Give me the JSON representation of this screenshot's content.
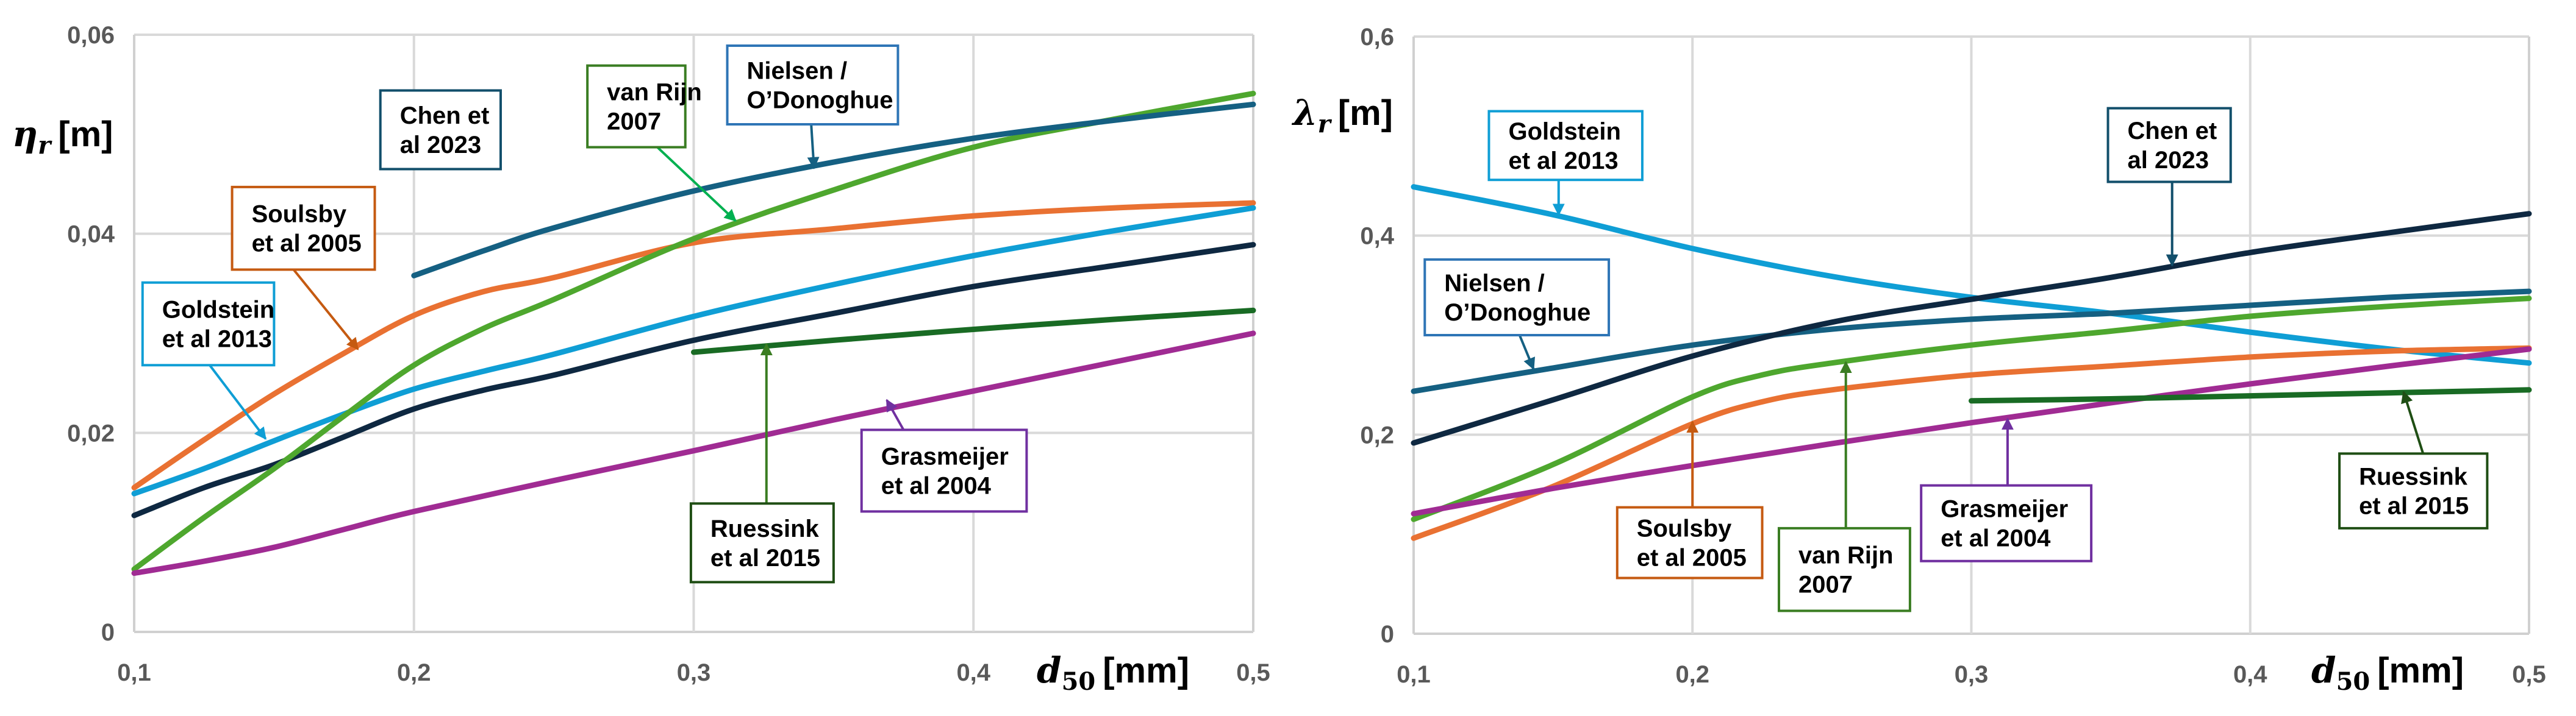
{
  "chart_data": [
    {
      "type": "line",
      "title": "",
      "xlabel": {
        "symbol": "d",
        "subscript": "50",
        "unit": "[mm]"
      },
      "ylabel": {
        "symbol": "η",
        "subscript": "r",
        "unit": "[m]"
      },
      "xlim": [
        0.1,
        0.5
      ],
      "ylim": [
        0,
        0.06
      ],
      "x_ticks": [
        0.1,
        0.2,
        0.3,
        0.4,
        0.5
      ],
      "x_tick_labels": [
        "0,1",
        "0,2",
        "0,3",
        "0,4",
        "0,5"
      ],
      "y_ticks": [
        0,
        0.02,
        0.04,
        0.06
      ],
      "y_tick_labels": [
        "0",
        "0,02",
        "0,04",
        "0,06"
      ],
      "grid": true,
      "legend": "none (callout labels)",
      "series": [
        {
          "name": "Soulsby et al 2005",
          "color": "#E97132",
          "x": [
            0.1,
            0.125,
            0.15,
            0.175,
            0.2,
            0.225,
            0.25,
            0.3,
            0.35,
            0.4,
            0.45,
            0.5
          ],
          "y": [
            0.0145,
            0.0193,
            0.0239,
            0.028,
            0.0318,
            0.0342,
            0.0356,
            0.0391,
            0.0405,
            0.0418,
            0.0426,
            0.0431
          ]
        },
        {
          "name": "Goldstein et al 2013",
          "color": "#0F9ED5",
          "x": [
            0.1,
            0.125,
            0.15,
            0.175,
            0.2,
            0.225,
            0.25,
            0.3,
            0.35,
            0.4,
            0.45,
            0.5
          ],
          "y": [
            0.0139,
            0.0164,
            0.0192,
            0.0219,
            0.0244,
            0.0262,
            0.0279,
            0.0317,
            0.0349,
            0.0378,
            0.0403,
            0.0426
          ]
        },
        {
          "name": "Chen et al 2023",
          "color": "#0E2841",
          "x": [
            0.1,
            0.125,
            0.15,
            0.175,
            0.2,
            0.225,
            0.25,
            0.3,
            0.35,
            0.4,
            0.45,
            0.5
          ],
          "y": [
            0.0117,
            0.0145,
            0.0168,
            0.0196,
            0.0224,
            0.0243,
            0.0258,
            0.0293,
            0.032,
            0.0347,
            0.0368,
            0.0389
          ]
        },
        {
          "name": "van Rijn 2007",
          "color": "#4EA72E",
          "x": [
            0.1,
            0.125,
            0.15,
            0.175,
            0.2,
            0.225,
            0.25,
            0.3,
            0.35,
            0.4,
            0.45,
            0.5
          ],
          "y": [
            0.0063,
            0.0115,
            0.0164,
            0.0217,
            0.0268,
            0.0305,
            0.0334,
            0.0395,
            0.0444,
            0.0487,
            0.0515,
            0.0541
          ]
        },
        {
          "name": "Grasmeijer et al 2004",
          "color": "#A02B93",
          "x": [
            0.1,
            0.125,
            0.15,
            0.175,
            0.2,
            0.25,
            0.3,
            0.35,
            0.4,
            0.45,
            0.5
          ],
          "y": [
            0.0059,
            0.0071,
            0.0085,
            0.0103,
            0.0121,
            0.0152,
            0.0182,
            0.0213,
            0.0242,
            0.0271,
            0.03
          ]
        },
        {
          "name": "Nielsen / O'Donoghue",
          "color": "#156082",
          "x": [
            0.2,
            0.225,
            0.25,
            0.3,
            0.35,
            0.4,
            0.45,
            0.5
          ],
          "y": [
            0.0358,
            0.0383,
            0.0406,
            0.0443,
            0.0472,
            0.0496,
            0.0514,
            0.053
          ]
        },
        {
          "name": "Ruessink et al 2015",
          "color": "#196B24",
          "x": [
            0.3,
            0.35,
            0.4,
            0.45,
            0.5
          ],
          "y": [
            0.0281,
            0.0293,
            0.0304,
            0.0314,
            0.0323
          ]
        }
      ],
      "annotations": [
        {
          "lines": [
            "Goldstein",
            "et al 2013"
          ],
          "color": "#0F9ED5",
          "box": [
            0.103,
            0.0351,
            0.15,
            0.0268
          ],
          "arrow_from": [
            0.127,
            0.0268
          ],
          "arrow_to": [
            0.147,
            0.0194
          ]
        },
        {
          "lines": [
            "Soulsby",
            "et al 2005"
          ],
          "color": "#C55A11",
          "box": [
            0.135,
            0.0447,
            0.186,
            0.0364
          ],
          "arrow_from": [
            0.157,
            0.0364
          ],
          "arrow_to": [
            0.18,
            0.0284
          ]
        },
        {
          "lines": [
            "Chen et",
            "al 2023"
          ],
          "color": "#124F6B",
          "box": [
            0.188,
            0.0544,
            0.231,
            0.0465
          ]
        },
        {
          "lines": [
            "van Rijn",
            "2007"
          ],
          "color": "#3A7D22",
          "box": [
            0.262,
            0.0569,
            0.297,
            0.0487
          ],
          "arrow_from": [
            0.287,
            0.0487
          ],
          "arrow_to": [
            0.315,
            0.0413
          ],
          "arrow_color": "#00B050"
        },
        {
          "lines": [
            "Nielsen /",
            "O’Donoghue"
          ],
          "color": "#2E75B6",
          "box": [
            0.312,
            0.0589,
            0.373,
            0.051
          ],
          "arrow_from": [
            0.342,
            0.051
          ],
          "arrow_to": [
            0.343,
            0.0466
          ],
          "arrow_color": "#156082"
        },
        {
          "lines": [
            "Ruessink",
            "et al 2015"
          ],
          "color": "#1F4E14",
          "box": [
            0.299,
            0.0129,
            0.35,
            0.005
          ],
          "arrow_from": [
            0.326,
            0.0129
          ],
          "arrow_to": [
            0.326,
            0.0289
          ],
          "arrow_color": "#3A7D22"
        },
        {
          "lines": [
            "Grasmeijer",
            "et al 2004"
          ],
          "color": "#7030A0",
          "box": [
            0.36,
            0.0203,
            0.419,
            0.0121
          ],
          "arrow_from": [
            0.375,
            0.0203
          ],
          "arrow_to": [
            0.369,
            0.0233
          ]
        }
      ]
    },
    {
      "type": "line",
      "title": "",
      "xlabel": {
        "symbol": "d",
        "subscript": "50",
        "unit": "[mm]"
      },
      "ylabel": {
        "symbol": "λ",
        "subscript": "r",
        "unit": "[m]"
      },
      "xlim": [
        0.1,
        0.5
      ],
      "ylim": [
        0,
        0.6
      ],
      "x_ticks": [
        0.1,
        0.2,
        0.3,
        0.4,
        0.5
      ],
      "x_tick_labels": [
        "0,1",
        "0,2",
        "0,3",
        "0,4",
        "0,5"
      ],
      "y_ticks": [
        0,
        0.2,
        0.4,
        0.6
      ],
      "y_tick_labels": [
        "0",
        "0,2",
        "0,4",
        "0,6"
      ],
      "grid": true,
      "legend": "none (callout labels)",
      "series": [
        {
          "name": "Goldstein et al 2013",
          "color": "#0F9ED5",
          "x": [
            0.1,
            0.15,
            0.2,
            0.25,
            0.3,
            0.35,
            0.4,
            0.45,
            0.5
          ],
          "y": [
            0.449,
            0.421,
            0.387,
            0.359,
            0.338,
            0.322,
            0.303,
            0.286,
            0.272
          ]
        },
        {
          "name": "Nielsen / O'Donoghue",
          "color": "#156082",
          "x": [
            0.1,
            0.15,
            0.2,
            0.25,
            0.3,
            0.35,
            0.4,
            0.45,
            0.5
          ],
          "y": [
            0.2436,
            0.267,
            0.29,
            0.306,
            0.316,
            0.322,
            0.33,
            0.338,
            0.344
          ]
        },
        {
          "name": "Chen et al 2023",
          "color": "#0E2841",
          "x": [
            0.1,
            0.15,
            0.2,
            0.25,
            0.3,
            0.35,
            0.4,
            0.45,
            0.5
          ],
          "y": [
            0.1917,
            0.235,
            0.279,
            0.313,
            0.336,
            0.358,
            0.383,
            0.403,
            0.422
          ]
        },
        {
          "name": "van Rijn 2007",
          "color": "#4EA72E",
          "x": [
            0.1,
            0.15,
            0.2,
            0.225,
            0.25,
            0.3,
            0.35,
            0.4,
            0.45,
            0.5
          ],
          "y": [
            0.115,
            0.17,
            0.238,
            0.26,
            0.272,
            0.29,
            0.304,
            0.319,
            0.329,
            0.337
          ]
        },
        {
          "name": "Soulsby et al 2005",
          "color": "#E97132",
          "x": [
            0.1,
            0.15,
            0.2,
            0.225,
            0.25,
            0.3,
            0.35,
            0.4,
            0.45,
            0.5
          ],
          "y": [
            0.096,
            0.148,
            0.211,
            0.233,
            0.245,
            0.26,
            0.269,
            0.278,
            0.284,
            0.287
          ]
        },
        {
          "name": "Grasmeijer et al 2004",
          "color": "#A02B93",
          "x": [
            0.1,
            0.15,
            0.2,
            0.25,
            0.3,
            0.35,
            0.4,
            0.45,
            0.5
          ],
          "y": [
            0.1206,
            0.146,
            0.169,
            0.191,
            0.212,
            0.232,
            0.251,
            0.269,
            0.286
          ]
        },
        {
          "name": "Ruessink et al 2015",
          "color": "#196B24",
          "x": [
            0.3,
            0.35,
            0.4,
            0.45,
            0.5
          ],
          "y": [
            0.234,
            0.236,
            0.239,
            0.242,
            0.245
          ]
        }
      ],
      "annotations": [
        {
          "lines": [
            "Goldstein",
            "et al 2013"
          ],
          "color": "#0F9ED5",
          "box": [
            0.127,
            0.525,
            0.182,
            0.456
          ],
          "arrow_from": [
            0.152,
            0.456
          ],
          "arrow_to": [
            0.152,
            0.421
          ]
        },
        {
          "lines": [
            "Nielsen /",
            "O’Donoghue"
          ],
          "color": "#2E75B6",
          "box": [
            0.104,
            0.376,
            0.17,
            0.3
          ],
          "arrow_from": [
            0.138,
            0.3
          ],
          "arrow_to": [
            0.143,
            0.266
          ],
          "arrow_color": "#156082"
        },
        {
          "lines": [
            "Chen et",
            "al 2023"
          ],
          "color": "#124F6B",
          "box": [
            0.349,
            0.528,
            0.393,
            0.454
          ],
          "arrow_from": [
            0.372,
            0.454
          ],
          "arrow_to": [
            0.372,
            0.37
          ]
        },
        {
          "lines": [
            "Soulsby",
            "et al 2005"
          ],
          "color": "#C55A11",
          "box": [
            0.173,
            0.127,
            0.225,
            0.056
          ],
          "arrow_from": [
            0.2,
            0.127
          ],
          "arrow_to": [
            0.2,
            0.213
          ]
        },
        {
          "lines": [
            "van Rijn",
            "2007"
          ],
          "color": "#3A7D22",
          "box": [
            0.231,
            0.106,
            0.278,
            0.023
          ],
          "arrow_from": [
            0.255,
            0.106
          ],
          "arrow_to": [
            0.255,
            0.273
          ]
        },
        {
          "lines": [
            "Grasmeijer",
            "et al 2004"
          ],
          "color": "#7030A0",
          "box": [
            0.282,
            0.149,
            0.343,
            0.073
          ],
          "arrow_from": [
            0.313,
            0.149
          ],
          "arrow_to": [
            0.313,
            0.216
          ]
        },
        {
          "lines": [
            "Ruessink",
            "et al 2015"
          ],
          "color": "#1F4E14",
          "box": [
            0.432,
            0.181,
            0.485,
            0.106
          ],
          "arrow_from": [
            0.462,
            0.181
          ],
          "arrow_to": [
            0.455,
            0.243
          ]
        }
      ]
    }
  ]
}
